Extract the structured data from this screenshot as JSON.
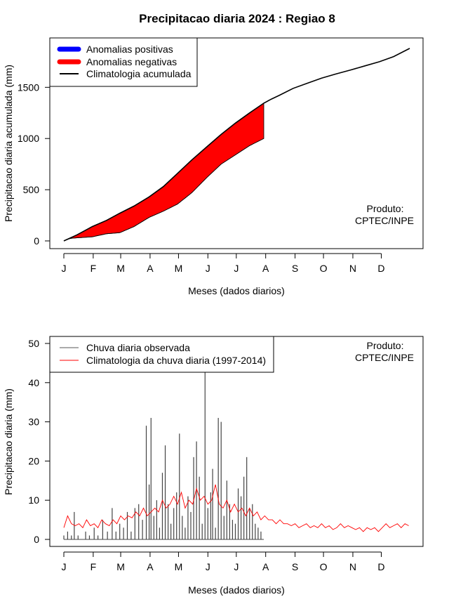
{
  "title": "Precipitacao diaria 2024 : Regiao 8",
  "chart_data": [
    {
      "type": "area",
      "title": "Precipitacao diaria 2024 : Regiao 8",
      "xlabel": "Meses (dados diarios)",
      "ylabel": "Precipitacao diaria acumulada (mm)",
      "xlim": [
        1,
        366
      ],
      "ylim": [
        0,
        1900
      ],
      "yticks": [
        0,
        500,
        1000,
        1500
      ],
      "month_labels": [
        "J",
        "F",
        "M",
        "A",
        "M",
        "J",
        "J",
        "A",
        "S",
        "O",
        "N",
        "D"
      ],
      "month_days": [
        1,
        32,
        61,
        92,
        122,
        153,
        183,
        214,
        245,
        275,
        306,
        336
      ],
      "legend": [
        "Anomalias positivas",
        "Anomalias negativas",
        "Climatologia acumulada"
      ],
      "legend_position": "top-left",
      "colors": {
        "positive": "#0000ff",
        "negative": "#ff0000",
        "climatology": "#000000"
      },
      "climatology_cumulative": {
        "x": [
          1,
          15,
          31,
          46,
          60,
          75,
          91,
          106,
          121,
          136,
          152,
          167,
          182,
          197,
          212,
          220,
          228,
          243,
          258,
          273,
          288,
          304,
          319,
          334,
          349,
          366
        ],
        "y": [
          0,
          60,
          140,
          200,
          270,
          340,
          430,
          530,
          660,
          790,
          920,
          1040,
          1150,
          1250,
          1345,
          1385,
          1420,
          1490,
          1540,
          1590,
          1630,
          1670,
          1710,
          1750,
          1800,
          1880
        ]
      },
      "observed_cumulative": {
        "x": [
          1,
          8,
          15,
          31,
          46,
          60,
          75,
          91,
          106,
          121,
          136,
          152,
          167,
          182,
          197,
          212
        ],
        "y": [
          0,
          25,
          30,
          40,
          70,
          80,
          140,
          230,
          290,
          360,
          470,
          620,
          750,
          840,
          930,
          1000
        ]
      },
      "credit": [
        "Produto:",
        "CPTEC/INPE"
      ]
    },
    {
      "type": "bar",
      "title": "",
      "xlabel": "Meses (dados diarios)",
      "ylabel": "Precipitacao diaria (mm)",
      "xlim": [
        1,
        366
      ],
      "ylim": [
        0,
        50
      ],
      "yticks": [
        0,
        10,
        20,
        30,
        40,
        50
      ],
      "month_labels": [
        "J",
        "F",
        "M",
        "A",
        "M",
        "J",
        "J",
        "A",
        "S",
        "O",
        "N",
        "D"
      ],
      "month_days": [
        1,
        32,
        61,
        92,
        122,
        153,
        183,
        214,
        245,
        275,
        306,
        336
      ],
      "legend": [
        "Chuva diaria observada",
        "Climatologia da chuva diaria (1997-2014)"
      ],
      "legend_position": "top-left",
      "colors": {
        "observed": "#000000",
        "climatology": "#ff0000"
      },
      "observed_daily": {
        "days": [
          1,
          5,
          9,
          12,
          16,
          20,
          24,
          28,
          33,
          37,
          42,
          47,
          52,
          56,
          60,
          64,
          68,
          72,
          76,
          80,
          84,
          88,
          91,
          93,
          96,
          99,
          102,
          105,
          108,
          111,
          114,
          117,
          120,
          123,
          126,
          129,
          132,
          135,
          138,
          141,
          144,
          147,
          150,
          153,
          156,
          158,
          161,
          164,
          167,
          170,
          173,
          176,
          179,
          182,
          185,
          188,
          191,
          194,
          197,
          200,
          203,
          206,
          209,
          212
        ],
        "values": [
          1,
          2,
          1,
          7,
          1,
          0,
          2,
          1,
          3,
          1,
          5,
          2,
          8,
          2,
          4,
          3,
          7,
          2,
          8,
          9,
          5,
          29,
          14,
          31,
          6,
          10,
          3,
          17,
          24,
          9,
          4,
          8,
          12,
          27,
          6,
          3,
          11,
          7,
          21,
          25,
          16,
          4,
          43,
          8,
          12,
          18,
          3,
          31,
          30,
          6,
          15,
          9,
          5,
          4,
          13,
          11,
          16,
          21,
          8,
          9,
          4,
          3,
          2,
          0
        ]
      },
      "climatology_daily": {
        "x": [
          1,
          5,
          9,
          13,
          17,
          21,
          25,
          29,
          33,
          37,
          41,
          45,
          49,
          53,
          57,
          61,
          65,
          69,
          73,
          77,
          81,
          85,
          89,
          93,
          97,
          101,
          105,
          109,
          113,
          117,
          121,
          125,
          129,
          133,
          137,
          141,
          145,
          149,
          153,
          157,
          161,
          165,
          169,
          173,
          177,
          181,
          185,
          189,
          193,
          197,
          201,
          205,
          209,
          213,
          217,
          221,
          225,
          229,
          233,
          237,
          241,
          245,
          249,
          253,
          257,
          261,
          265,
          269,
          273,
          277,
          281,
          285,
          289,
          293,
          297,
          301,
          305,
          309,
          313,
          317,
          321,
          325,
          329,
          333,
          337,
          341,
          345,
          349,
          353,
          357,
          361,
          365
        ],
        "y": [
          3,
          6,
          4,
          3.5,
          4,
          3,
          5,
          3.5,
          4,
          3,
          5,
          4,
          3.5,
          5,
          4,
          6,
          5,
          6,
          5.5,
          7,
          6,
          8,
          6,
          7,
          8,
          7,
          10,
          8,
          9,
          11,
          9,
          12,
          8,
          10,
          9,
          13,
          10,
          11,
          9,
          10,
          14,
          9,
          8,
          10,
          7,
          9,
          7,
          8,
          6,
          8,
          6,
          7,
          5,
          6,
          5,
          5,
          4,
          5,
          4,
          4,
          3.5,
          4,
          3,
          3.5,
          4,
          3,
          3.5,
          3,
          4,
          3,
          3.5,
          2.5,
          3,
          4,
          3,
          3.5,
          3,
          2.5,
          3,
          2,
          3,
          2.5,
          3,
          2,
          3,
          4,
          3,
          3.5,
          4,
          3,
          4,
          3.5
        ]
      },
      "credit": [
        "Produto:",
        "CPTEC/INPE"
      ]
    }
  ]
}
